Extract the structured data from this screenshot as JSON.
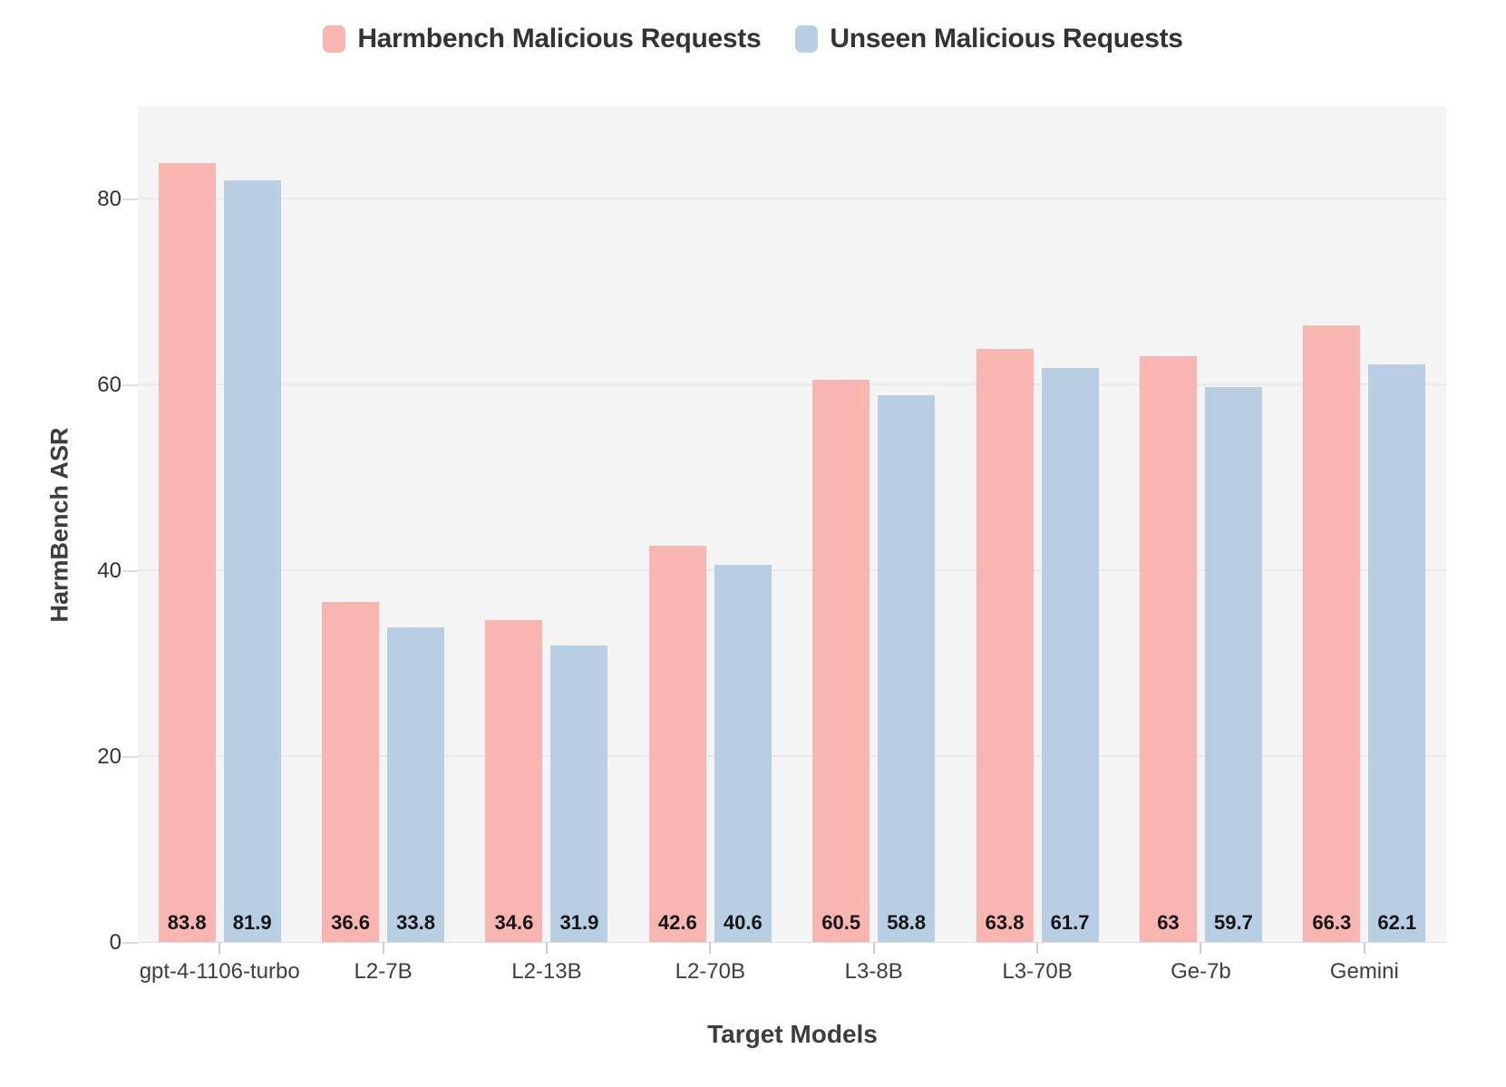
{
  "legend": {
    "items": [
      {
        "label": "Harmbench Malicious Requests",
        "color": "#f9b6b1"
      },
      {
        "label": "Unseen Malicious Requests",
        "color": "#b8cfe3"
      }
    ]
  },
  "chart_data": {
    "type": "bar",
    "title": "",
    "xlabel": "Target Models",
    "ylabel": "HarmBench ASR",
    "categories": [
      "gpt-4-1106-turbo",
      "L2-7B",
      "L2-13B",
      "L2-70B",
      "L3-8B",
      "L3-70B",
      "Ge-7b",
      "Gemini"
    ],
    "series": [
      {
        "name": "Harmbench Malicious Requests",
        "color": "#f9b6b1",
        "values": [
          83.8,
          36.6,
          34.6,
          42.6,
          60.5,
          63.8,
          63,
          66.3
        ],
        "labels": [
          "83.8",
          "36.6",
          "34.6",
          "42.6",
          "60.5",
          "63.8",
          "63",
          "66.3"
        ]
      },
      {
        "name": "Unseen Malicious Requests",
        "color": "#b8cfe3",
        "values": [
          81.9,
          33.8,
          31.9,
          40.6,
          58.8,
          61.7,
          59.7,
          62.1
        ],
        "labels": [
          "81.9",
          "33.8",
          "31.9",
          "40.6",
          "58.8",
          "61.7",
          "59.7",
          "62.1"
        ]
      }
    ],
    "ylim": [
      0,
      90
    ],
    "yticks": [
      0,
      20,
      40,
      60,
      80
    ],
    "grid": true,
    "legend_position": "top",
    "panel_background": "#f4f4f4",
    "gridline_color": "#e9e9e9",
    "label_position": "inside-base"
  }
}
